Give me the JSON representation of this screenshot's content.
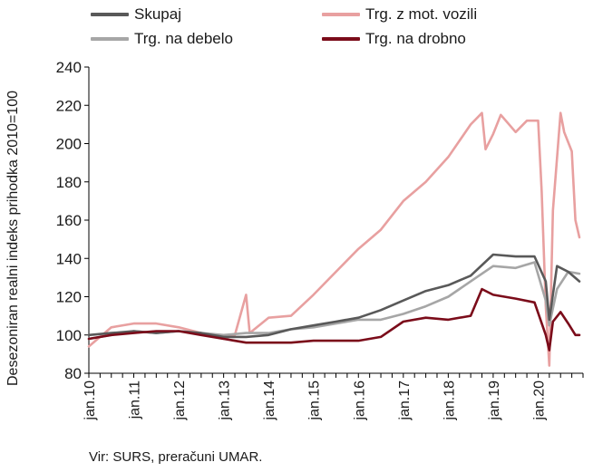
{
  "chart_data": {
    "type": "line",
    "ylabel": "Desezoniran realni indeks prihodka 2010=100",
    "xlabel": "",
    "ylim": [
      80,
      240
    ],
    "yticks": [
      80,
      100,
      120,
      140,
      160,
      180,
      200,
      220,
      240
    ],
    "grid": false,
    "legend_position": "top",
    "x_start": "2010-01",
    "x_end": "2020-12",
    "xtick_labels": [
      "jan.10",
      "jan.11",
      "jan.12",
      "jan.13",
      "jan.14",
      "jan.15",
      "jan.16",
      "jan.17",
      "jan.18",
      "jan.19",
      "jan.20"
    ],
    "series": [
      {
        "name": "Skupaj",
        "color": "#595959",
        "values": [
          [
            2010.0,
            100
          ],
          [
            2010.5,
            101
          ],
          [
            2011.0,
            102
          ],
          [
            2011.5,
            101
          ],
          [
            2012.0,
            102
          ],
          [
            2012.5,
            101
          ],
          [
            2013.0,
            99
          ],
          [
            2013.5,
            99
          ],
          [
            2014.0,
            100
          ],
          [
            2014.5,
            103
          ],
          [
            2015.0,
            105
          ],
          [
            2015.5,
            107
          ],
          [
            2016.0,
            109
          ],
          [
            2016.5,
            113
          ],
          [
            2017.0,
            118
          ],
          [
            2017.5,
            123
          ],
          [
            2018.0,
            126
          ],
          [
            2018.5,
            131
          ],
          [
            2019.0,
            142
          ],
          [
            2019.5,
            141
          ],
          [
            2019.92,
            141
          ],
          [
            2020.17,
            128
          ],
          [
            2020.25,
            108
          ],
          [
            2020.42,
            136
          ],
          [
            2020.67,
            133
          ],
          [
            2020.92,
            128
          ]
        ]
      },
      {
        "name": "Trg. z mot. vozili",
        "color": "#e8a0a0",
        "values": [
          [
            2010.0,
            94
          ],
          [
            2010.5,
            104
          ],
          [
            2011.0,
            106
          ],
          [
            2011.5,
            106
          ],
          [
            2012.0,
            104
          ],
          [
            2012.5,
            101
          ],
          [
            2013.0,
            98
          ],
          [
            2013.25,
            100
          ],
          [
            2013.5,
            121
          ],
          [
            2013.58,
            101
          ],
          [
            2014.0,
            109
          ],
          [
            2014.5,
            110
          ],
          [
            2015.0,
            121
          ],
          [
            2015.5,
            133
          ],
          [
            2016.0,
            145
          ],
          [
            2016.5,
            155
          ],
          [
            2017.0,
            170
          ],
          [
            2017.5,
            180
          ],
          [
            2018.0,
            193
          ],
          [
            2018.5,
            210
          ],
          [
            2018.75,
            216
          ],
          [
            2018.83,
            197
          ],
          [
            2019.0,
            205
          ],
          [
            2019.17,
            215
          ],
          [
            2019.5,
            206
          ],
          [
            2019.75,
            212
          ],
          [
            2020.0,
            212
          ],
          [
            2020.08,
            175
          ],
          [
            2020.17,
            115
          ],
          [
            2020.25,
            84
          ],
          [
            2020.33,
            165
          ],
          [
            2020.5,
            216
          ],
          [
            2020.58,
            206
          ],
          [
            2020.75,
            196
          ],
          [
            2020.83,
            160
          ],
          [
            2020.92,
            151
          ]
        ]
      },
      {
        "name": "Trg. na debelo",
        "color": "#a6a6a6",
        "values": [
          [
            2010.0,
            98
          ],
          [
            2010.5,
            100
          ],
          [
            2011.0,
            102
          ],
          [
            2011.5,
            101
          ],
          [
            2012.0,
            102
          ],
          [
            2012.5,
            101
          ],
          [
            2013.0,
            100
          ],
          [
            2013.5,
            101
          ],
          [
            2014.0,
            101
          ],
          [
            2014.5,
            103
          ],
          [
            2015.0,
            104
          ],
          [
            2015.5,
            106
          ],
          [
            2016.0,
            108
          ],
          [
            2016.5,
            108
          ],
          [
            2017.0,
            111
          ],
          [
            2017.5,
            115
          ],
          [
            2018.0,
            120
          ],
          [
            2018.5,
            128
          ],
          [
            2019.0,
            136
          ],
          [
            2019.5,
            135
          ],
          [
            2019.92,
            138
          ],
          [
            2020.17,
            118
          ],
          [
            2020.25,
            105
          ],
          [
            2020.42,
            124
          ],
          [
            2020.67,
            133
          ],
          [
            2020.92,
            132
          ]
        ]
      },
      {
        "name": "Trg. na drobno",
        "color": "#7b0c1a",
        "values": [
          [
            2010.0,
            98
          ],
          [
            2010.5,
            100
          ],
          [
            2011.0,
            101
          ],
          [
            2011.5,
            102
          ],
          [
            2012.0,
            102
          ],
          [
            2012.5,
            100
          ],
          [
            2013.0,
            98
          ],
          [
            2013.5,
            96
          ],
          [
            2014.0,
            96
          ],
          [
            2014.5,
            96
          ],
          [
            2015.0,
            97
          ],
          [
            2015.5,
            97
          ],
          [
            2016.0,
            97
          ],
          [
            2016.5,
            99
          ],
          [
            2017.0,
            107
          ],
          [
            2017.5,
            109
          ],
          [
            2018.0,
            108
          ],
          [
            2018.5,
            110
          ],
          [
            2018.75,
            124
          ],
          [
            2019.0,
            121
          ],
          [
            2019.5,
            119
          ],
          [
            2019.92,
            117
          ],
          [
            2020.17,
            100
          ],
          [
            2020.25,
            92
          ],
          [
            2020.33,
            107
          ],
          [
            2020.5,
            112
          ],
          [
            2020.67,
            106
          ],
          [
            2020.83,
            100
          ],
          [
            2020.92,
            100
          ]
        ]
      }
    ]
  },
  "source": "Vir: SURS, preračuni UMAR."
}
